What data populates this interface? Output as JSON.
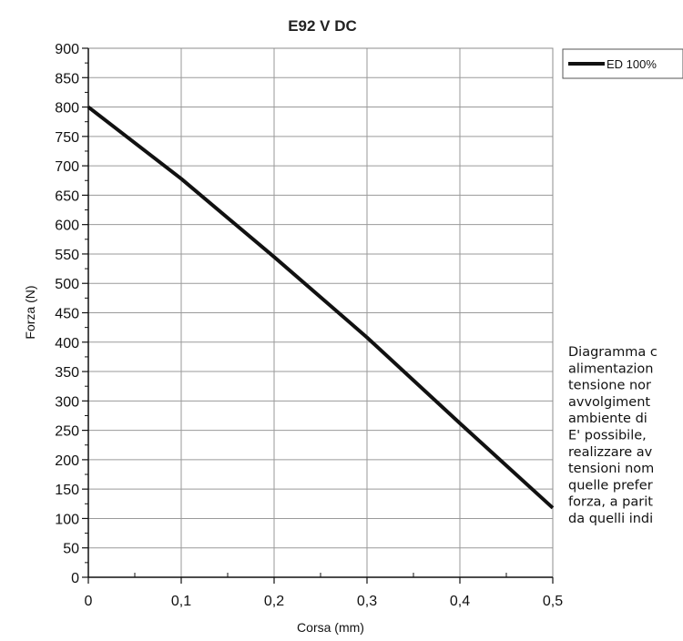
{
  "chart_data": {
    "type": "line",
    "title": "E92 V DC",
    "xlabel": "Corsa (mm)",
    "ylabel": "Forza (N)",
    "xlim": [
      0,
      0.5
    ],
    "ylim": [
      0,
      900
    ],
    "x_ticks": [
      "0",
      "0,1",
      "0,2",
      "0,3",
      "0,4",
      "0,5"
    ],
    "y_ticks": [
      "0",
      "50",
      "100",
      "150",
      "200",
      "250",
      "300",
      "350",
      "400",
      "450",
      "500",
      "550",
      "600",
      "650",
      "700",
      "750",
      "800",
      "850",
      "900"
    ],
    "grid": true,
    "legend_position": "top-right, outside plot",
    "series": [
      {
        "name": "ED 100%",
        "color": "#111111",
        "x": [
          0,
          0.1,
          0.2,
          0.3,
          0.4,
          0.5
        ],
        "y": [
          800,
          678,
          545,
          408,
          262,
          118
        ]
      }
    ]
  },
  "note_lines": [
    "Diagramma c",
    "alimentazion",
    "tensione nor",
    "avvolgiment",
    "ambiente di",
    "E' possibile,",
    "realizzare av",
    "tensioni nom",
    "quelle prefer",
    "forza, a parit",
    "da quelli indi"
  ]
}
